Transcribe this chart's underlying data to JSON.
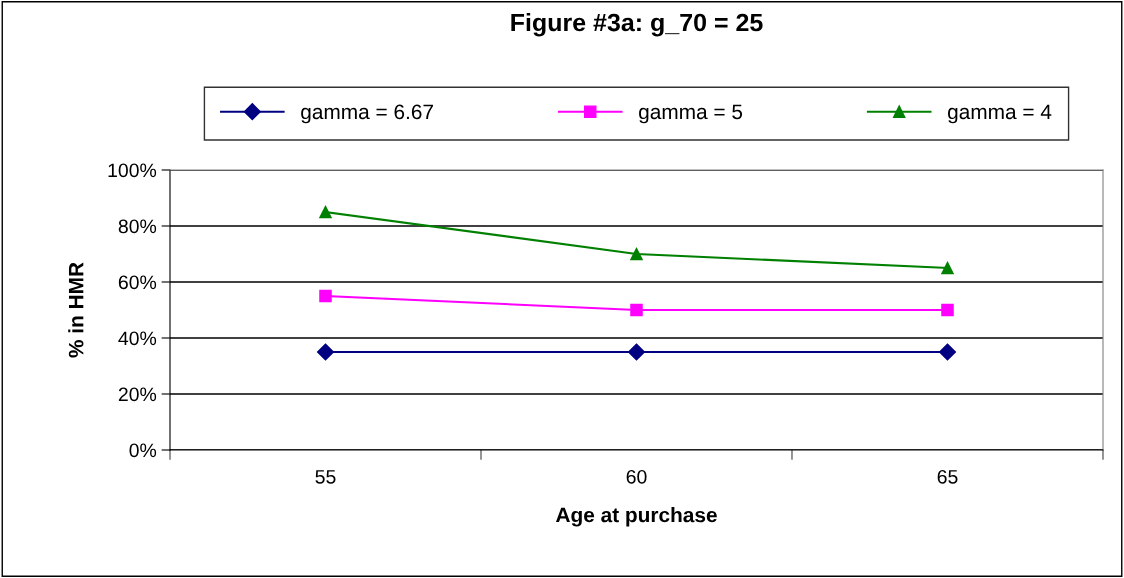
{
  "chart_data": {
    "type": "line",
    "title": "Figure #3a: g_70 = 25",
    "xlabel": "Age at purchase",
    "ylabel": "% in HMR",
    "categories": [
      "55",
      "60",
      "65"
    ],
    "series": [
      {
        "name": "gamma = 6.67",
        "color": "#000080",
        "marker": "diamond",
        "values": [
          35,
          35,
          35
        ]
      },
      {
        "name": "gamma = 5",
        "color": "#ff00ff",
        "marker": "square",
        "values": [
          55,
          50,
          50
        ]
      },
      {
        "name": "gamma = 4",
        "color": "#008000",
        "marker": "triangle",
        "values": [
          85,
          70,
          65
        ]
      }
    ],
    "ylim": [
      0,
      100
    ],
    "yticks": [
      {
        "value": 0,
        "label": "0%"
      },
      {
        "value": 20,
        "label": "20%"
      },
      {
        "value": 40,
        "label": "40%"
      },
      {
        "value": 60,
        "label": "60%"
      },
      {
        "value": 80,
        "label": "80%"
      },
      {
        "value": 100,
        "label": "100%"
      }
    ],
    "grid": "y",
    "legend": "top",
    "line_style": "solid"
  }
}
